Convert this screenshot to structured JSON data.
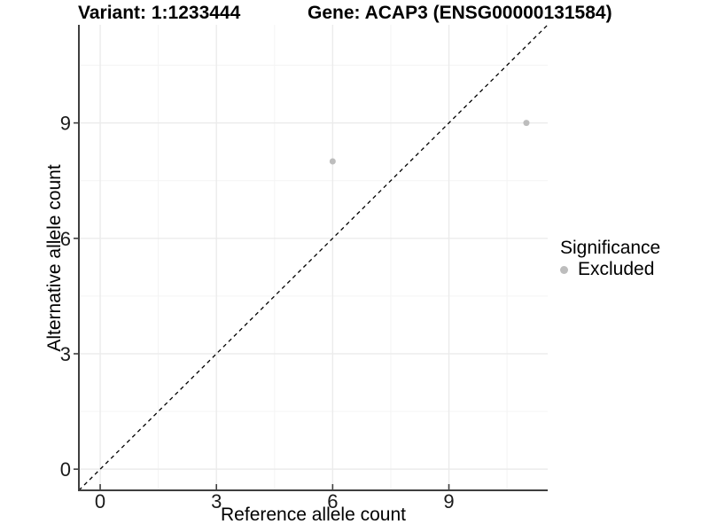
{
  "header": {
    "variant_title": "Variant: 1:1233444",
    "gene_title": "Gene: ACAP3 (ENSG00000131584)"
  },
  "axes": {
    "x_label": "Reference allele count",
    "y_label": "Alternative allele count"
  },
  "legend": {
    "title": "Significance",
    "items": [
      {
        "label": "Excluded",
        "marker": "circle",
        "color": "#bdbdbd"
      }
    ]
  },
  "chart_data": {
    "type": "scatter",
    "title": "Variant: 1:1233444",
    "subtitle": "Gene: ACAP3 (ENSG00000131584)",
    "xlabel": "Reference allele count",
    "ylabel": "Alternative allele count",
    "xlim": [
      -0.55,
      11.55
    ],
    "ylim": [
      -0.55,
      11.55
    ],
    "x_ticks": [
      0,
      3,
      6,
      9
    ],
    "y_ticks": [
      0,
      3,
      6,
      9
    ],
    "x_minor_ticks": [
      1.5,
      4.5,
      7.5,
      10.5
    ],
    "y_minor_ticks": [
      1.5,
      4.5,
      7.5,
      10.5
    ],
    "grid": true,
    "legend_position": "right",
    "series": [
      {
        "name": "Excluded",
        "color": "#bdbdbd",
        "points": [
          {
            "x": 6,
            "y": 8
          },
          {
            "x": 11,
            "y": 9
          }
        ]
      }
    ],
    "reference_line": {
      "type": "identity",
      "slope": 1,
      "intercept": 0,
      "style": "dashed",
      "color": "#000000"
    }
  },
  "colors": {
    "background": "#ffffff",
    "grid_major": "#ebebeb",
    "grid_minor": "#f4f4f4",
    "axis_line": "#3f3f3f",
    "tick_label": "#1a1a1a",
    "point": "#bdbdbd",
    "reference_line": "#000000"
  }
}
